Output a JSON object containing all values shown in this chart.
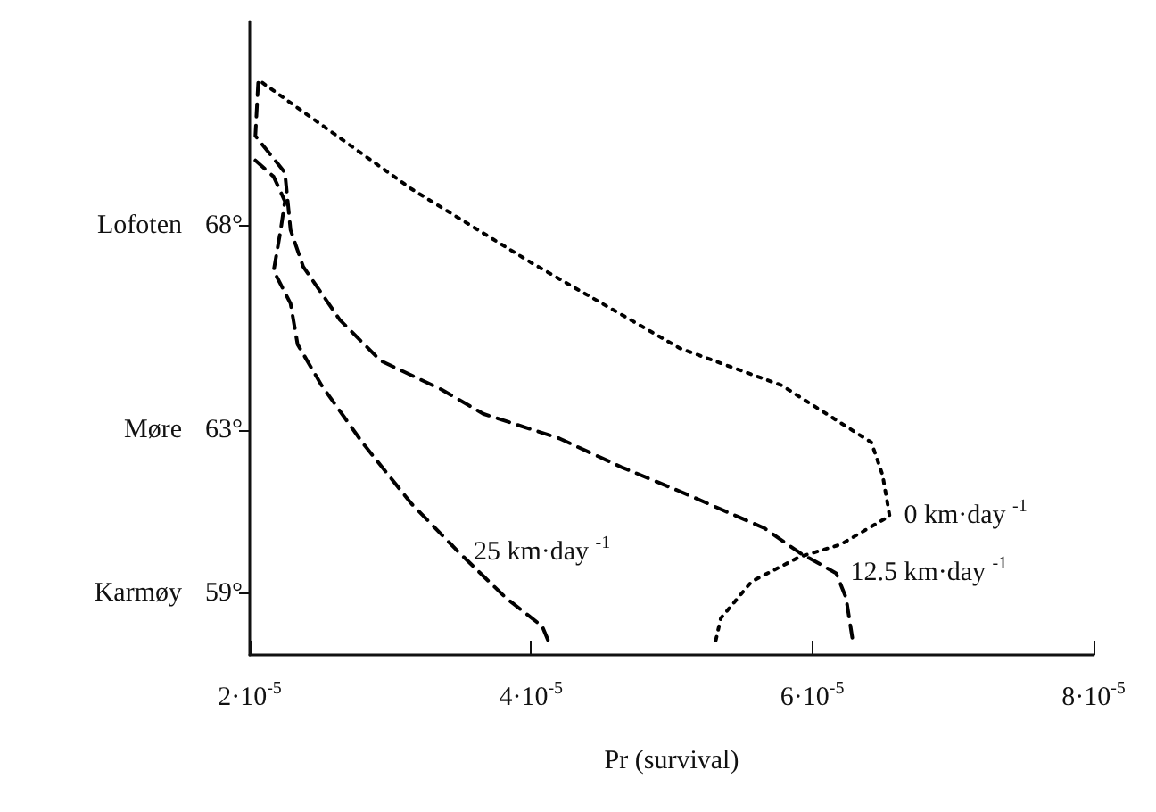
{
  "chart_data": {
    "type": "line",
    "xlabel": "Pr (survival)",
    "xlim": [
      2e-05,
      8e-05
    ],
    "xticks": [
      {
        "value": 2e-05,
        "label": "2·10$^{-5}$"
      },
      {
        "value": 4e-05,
        "label": "4·10$^{-5}$"
      },
      {
        "value": 6e-05,
        "label": "6·10$^{-5}$"
      },
      {
        "value": 8e-05,
        "label": "8·10$^{-5}$"
      }
    ],
    "ylim": [
      57.5,
      73
    ],
    "yticks": [
      {
        "value": 59,
        "label": "59°"
      },
      {
        "value": 63,
        "label": "63°"
      },
      {
        "value": 68,
        "label": "68°"
      }
    ],
    "annotations": [
      "Karmøy",
      "Møre",
      "Lofoten"
    ],
    "grid": false,
    "legend": false,
    "marker": "none",
    "series": [
      {
        "name": "0 km·day $^{-1}$",
        "color": "#000000",
        "line_style": "dotted",
        "x": [
          2.09e-05,
          3.15e-05,
          4e-05,
          5.06e-05,
          5.78e-05,
          6.42e-05,
          6.5e-05,
          6.55e-05,
          6.2e-05,
          5.91e-05,
          5.57e-05,
          5.35e-05,
          5.31e-05
        ],
        "values": [
          71.5,
          68.9,
          67.1,
          65.0,
          64.1,
          62.7,
          61.9,
          60.9,
          60.2,
          59.9,
          59.3,
          58.4,
          57.8
        ]
      },
      {
        "name": "12.5 km·day $^{-1}$",
        "color": "#000000",
        "line_style": "dashed",
        "x": [
          2.06e-05,
          2.04e-05,
          2.25e-05,
          2.29e-05,
          2.38e-05,
          2.64e-05,
          2.93e-05,
          3.36e-05,
          3.66e-05,
          4.2e-05,
          4.64e-05,
          5.06e-05,
          5.66e-05,
          5.91e-05,
          6.17e-05,
          6.24e-05,
          6.29e-05
        ],
        "values": [
          71.5,
          70.2,
          69.3,
          67.9,
          67.0,
          65.7,
          64.7,
          64.0,
          63.4,
          62.8,
          62.1,
          61.5,
          60.6,
          60.0,
          59.5,
          58.9,
          57.8
        ]
      },
      {
        "name": "25 km·day $^{-1}$",
        "color": "#000000",
        "line_style": "dashed",
        "x": [
          2.04e-05,
          2.17e-05,
          2.25e-05,
          2.22e-05,
          2.17e-05,
          2.29e-05,
          2.34e-05,
          2.51e-05,
          2.8e-05,
          3.15e-05,
          3.49e-05,
          3.82e-05,
          4.08e-05,
          4.14e-05
        ],
        "values": [
          69.6,
          69.2,
          68.6,
          67.9,
          66.9,
          66.1,
          65.1,
          64.1,
          62.7,
          61.2,
          60.0,
          58.9,
          58.2,
          57.7
        ]
      }
    ]
  }
}
